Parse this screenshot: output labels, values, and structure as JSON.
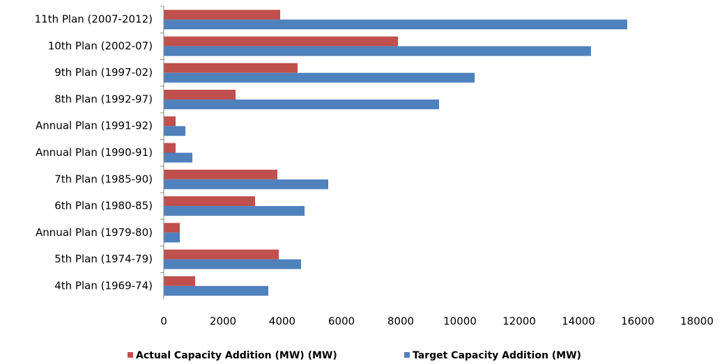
{
  "chart_data": {
    "type": "bar",
    "orientation": "horizontal",
    "categories": [
      "11th Plan (2007-2012)",
      "10th Plan (2002-07)",
      "9th Plan (1997-02)",
      "8th Plan (1992-97)",
      "Annual Plan (1991-92)",
      "Annual Plan (1990-91)",
      "7th Plan (1985-90)",
      "6th Plan (1980-85)",
      "Annual Plan (1979-80)",
      "5th Plan (1974-79)",
      "4th Plan (1969-74)"
    ],
    "series": [
      {
        "name": "Actual Capacity Addition (MW) (MW)",
        "color": "#c0504d",
        "values": [
          3930,
          7906,
          4518,
          2424,
          400,
          400,
          3835,
          3082,
          541,
          3882,
          1059
        ]
      },
      {
        "name": "Target Capacity Addition (MW)",
        "color": "#4f81bd",
        "values": [
          15647,
          14424,
          10494,
          9294,
          730,
          965,
          5553,
          4753,
          541,
          4635,
          3529
        ]
      }
    ],
    "xlim": [
      0,
      18000
    ],
    "xticks": [
      0,
      2000,
      4000,
      6000,
      8000,
      10000,
      12000,
      14000,
      16000,
      18000
    ],
    "grid": false,
    "legend": "bottom"
  }
}
